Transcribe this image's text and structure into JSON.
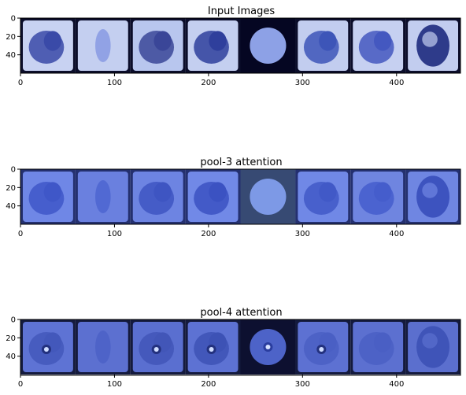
{
  "chart_data": [
    {
      "type": "image",
      "title": "Input Images",
      "xlim": [
        0,
        468
      ],
      "ylim": [
        60,
        0
      ],
      "xticks": [
        0,
        100,
        200,
        300,
        400
      ],
      "yticks": [
        0,
        20,
        40
      ],
      "grid": false,
      "tiles": [
        {
          "bg": "#c8d2f2",
          "blob": "#3a4aa8",
          "rim": "#0b0d2a",
          "type": "patch"
        },
        {
          "bg": "#c4cff0",
          "blob": "#8496e2",
          "rim": "#0b0d2a",
          "type": "faint"
        },
        {
          "bg": "#b8c6ee",
          "blob": "#3a4698",
          "rim": "#0b0d2a",
          "type": "patch"
        },
        {
          "bg": "#c4cff0",
          "blob": "#2f3f9c",
          "rim": "#0b0d2a",
          "type": "patch"
        },
        {
          "bg": "#050622",
          "blob": "#8da1e6",
          "rim": "#050622",
          "type": "circle"
        },
        {
          "bg": "#c2cdef",
          "blob": "#3d55b8",
          "rim": "#0b0d2a",
          "type": "patch"
        },
        {
          "bg": "#c6d0f1",
          "blob": "#4458c0",
          "rim": "#0b0d2a",
          "type": "patch"
        },
        {
          "bg": "#c2cdef",
          "blob": "#2e3b8a",
          "rim": "#0b0d2a",
          "type": "ring"
        }
      ]
    },
    {
      "type": "image",
      "title": "pool-3 attention",
      "xlim": [
        0,
        468
      ],
      "ylim": [
        60,
        0
      ],
      "xticks": [
        0,
        100,
        200,
        300,
        400
      ],
      "yticks": [
        0,
        20,
        40
      ],
      "grid": false,
      "tiles": [
        {
          "bg": "#6f87e6",
          "blob": "#3f57c8",
          "rim": "#24306f",
          "type": "patch"
        },
        {
          "bg": "#6a80df",
          "blob": "#4b63cf",
          "rim": "#24306f",
          "type": "faint"
        },
        {
          "bg": "#6d84e2",
          "blob": "#3e55c2",
          "rim": "#24306f",
          "type": "patch"
        },
        {
          "bg": "#7189e7",
          "blob": "#3b52c2",
          "rim": "#24306f",
          "type": "patch"
        },
        {
          "bg": "#374a73",
          "blob": "#7d99e6",
          "rim": "#374a73",
          "type": "circle"
        },
        {
          "bg": "#7088e6",
          "blob": "#4159c7",
          "rim": "#24306f",
          "type": "patch"
        },
        {
          "bg": "#6f85e0",
          "blob": "#455dcc",
          "rim": "#24306f",
          "type": "patch"
        },
        {
          "bg": "#6f86e2",
          "blob": "#3d53bf",
          "rim": "#24306f",
          "type": "ring"
        }
      ]
    },
    {
      "type": "image",
      "title": "pool-4 attention",
      "xlim": [
        0,
        468
      ],
      "ylim": [
        60,
        0
      ],
      "xticks": [
        0,
        100,
        200,
        300,
        400
      ],
      "yticks": [
        0,
        20,
        40
      ],
      "grid": false,
      "tiles": [
        {
          "bg": "#5e73d4",
          "blob": "#4358bb",
          "rim": "#141a3d",
          "type": "hotspot"
        },
        {
          "bg": "#5c70d0",
          "blob": "#4b60c5",
          "rim": "#141a3d",
          "type": "faint"
        },
        {
          "bg": "#5a6fd0",
          "blob": "#4256b8",
          "rim": "#141a3d",
          "type": "hotspot"
        },
        {
          "bg": "#5d72d3",
          "blob": "#3d52b5",
          "rim": "#141a3d",
          "type": "hotspot"
        },
        {
          "bg": "#0d1030",
          "blob": "#4d63c8",
          "rim": "#0d1030",
          "type": "circlehot"
        },
        {
          "bg": "#5d71d2",
          "blob": "#4a5fc4",
          "rim": "#141a3d",
          "type": "hotspot"
        },
        {
          "bg": "#5c70d0",
          "blob": "#4a5fc4",
          "rim": "#141a3d",
          "type": "patch"
        },
        {
          "bg": "#5b6fce",
          "blob": "#3f54b8",
          "rim": "#141a3d",
          "type": "ring"
        }
      ]
    }
  ]
}
